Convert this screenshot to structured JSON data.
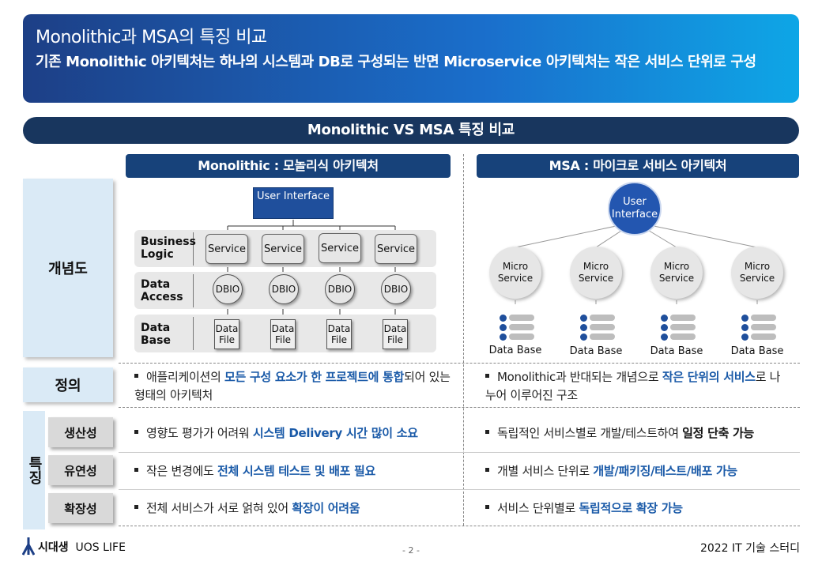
{
  "banner": {
    "title": "Monolithic과 MSA의 특징 비교",
    "description": "기존 Monolithic 아키텍처는 하나의 시스템과 DB로 구성되는 반면 Microservice 아키텍처는 작은 서비스 단위로 구성"
  },
  "section_title": "Monolithic VS MSA 특징 비교",
  "columns": {
    "left_header": "Monolithic : 모놀리식 아키텍처",
    "right_header": "MSA : 마이크로 서비스 아키텍처"
  },
  "row_labels": {
    "concept": "개념도",
    "definition": "정의",
    "features": "특징",
    "productivity": "생산성",
    "flexibility": "유연성",
    "scalability": "확장성"
  },
  "mono_diagram": {
    "ui_label": "User Interface",
    "bands": [
      "Business Logic",
      "Data Access",
      "Data Base"
    ],
    "service_label": "Service",
    "dbio_label": "DBIO",
    "file_label": "Data File"
  },
  "msa_diagram": {
    "ui_label": "User Interface",
    "micro_label": "Micro Service",
    "db_label": "Data Base"
  },
  "definition": {
    "mono": {
      "pre": "애플리케이션의 ",
      "bold": "모든 구성 요소가 한 프로젝트에 통합",
      "post": "되어 있는 형태의 아키텍처"
    },
    "msa": {
      "pre": "Monolithic과 반대되는 개념으로 ",
      "bold": "작은 단위의 서비스",
      "post": "로 나누어 이루어진 구조"
    }
  },
  "features": {
    "productivity": {
      "mono": {
        "pre": "영향도 평가가 어려워 ",
        "bold": "시스템 Delivery  시간 많이 소요",
        "post": ""
      },
      "msa": {
        "pre": "독립적인 서비스별로 개발/테스트하여 ",
        "bold": "일정 단축 가능",
        "post": ""
      }
    },
    "flexibility": {
      "mono": {
        "pre": "작은 변경에도 ",
        "bold": "전체 시스템 테스트 및 배포 필요",
        "post": ""
      },
      "msa": {
        "pre": "개별 서비스 단위로 ",
        "bold": "개발/패키징/테스트/배포  가능",
        "post": ""
      }
    },
    "scalability": {
      "mono": {
        "pre": "전체 서비스가 서로 얽혀 있어 ",
        "bold": "확장이 어려움",
        "post": ""
      },
      "msa": {
        "pre": "서비스 단위별로 ",
        "bold": "독립적으로 확장 가능",
        "post": ""
      }
    }
  },
  "footer": {
    "logo_text": "시대생",
    "logo_sub": "UOS LIFE",
    "page": "- 2 -",
    "right": "2022 IT 기술 스터디"
  },
  "colors": {
    "accent": "#1a5aa8",
    "navy": "#18365e",
    "header_blue": "#17427a"
  }
}
